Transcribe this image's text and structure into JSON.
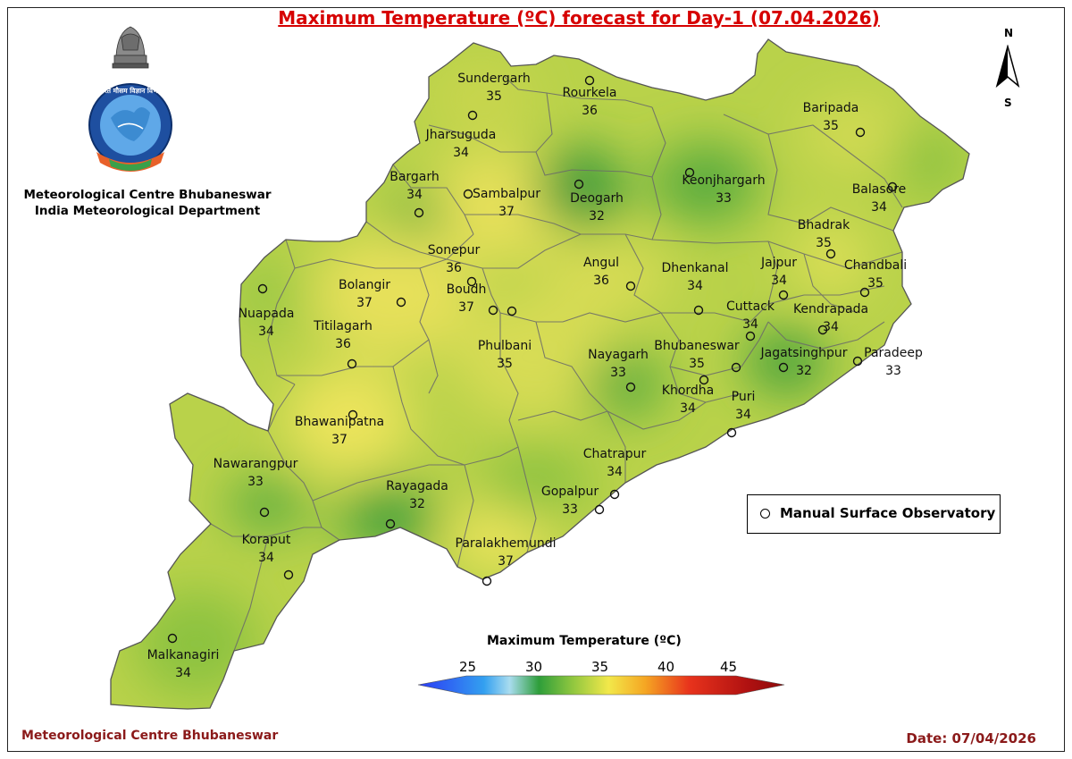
{
  "title": "Maximum Temperature (ºC) forecast for Day-1 (07.04.2026)",
  "organization": {
    "line1": "Meteorological Centre Bhubaneswar",
    "line2": "India Meteorological Department"
  },
  "logo": {
    "emblem_icon": "national-emblem-icon",
    "imd_seal_icon": "imd-seal-icon",
    "seal_text": "भारत मौसम विज्ञान विभाग",
    "seal_ring_text": "INDIA METEOROLOGICAL DEPARTMENT",
    "motto": "आदित्यात् जायते वृष्टिः"
  },
  "compass": {
    "north": "N",
    "south": "S",
    "icon": "north-arrow-icon"
  },
  "stations": [
    {
      "name": "Sundergarh",
      "value": "35"
    },
    {
      "name": "Rourkela",
      "value": "36"
    },
    {
      "name": "Baripada",
      "value": "35"
    },
    {
      "name": "Jharsuguda",
      "value": "34"
    },
    {
      "name": "Bargarh",
      "value": "34"
    },
    {
      "name": "Sambalpur",
      "value": "37"
    },
    {
      "name": "Deogarh",
      "value": "32"
    },
    {
      "name": "Keonjhargarh",
      "value": "33"
    },
    {
      "name": "Balasore",
      "value": "34"
    },
    {
      "name": "Bhadrak",
      "value": "35"
    },
    {
      "name": "Sonepur",
      "value": "36"
    },
    {
      "name": "Angul",
      "value": "36"
    },
    {
      "name": "Dhenkanal",
      "value": "34"
    },
    {
      "name": "Jajpur",
      "value": "34"
    },
    {
      "name": "Chandbali",
      "value": "35"
    },
    {
      "name": "Bolangir",
      "value": "37"
    },
    {
      "name": "Boudh",
      "value": "37"
    },
    {
      "name": "Nuapada",
      "value": "34"
    },
    {
      "name": "Titilagarh",
      "value": "36"
    },
    {
      "name": "Cuttack",
      "value": "34"
    },
    {
      "name": "Kendrapada",
      "value": "34"
    },
    {
      "name": "Phulbani",
      "value": "35"
    },
    {
      "name": "Nayagarh",
      "value": "33"
    },
    {
      "name": "Bhubaneswar",
      "value": "35"
    },
    {
      "name": "Jagatsinghpur",
      "value": "32"
    },
    {
      "name": "Paradeep",
      "value": "33"
    },
    {
      "name": "Khordha",
      "value": "34"
    },
    {
      "name": "Puri",
      "value": "34"
    },
    {
      "name": "Bhawanipatna",
      "value": "37"
    },
    {
      "name": "Chatrapur",
      "value": "34"
    },
    {
      "name": "Nawarangpur",
      "value": "33"
    },
    {
      "name": "Rayagada",
      "value": "32"
    },
    {
      "name": "Gopalpur",
      "value": "33"
    },
    {
      "name": "Koraput",
      "value": "34"
    },
    {
      "name": "Paralakhemundi",
      "value": "37"
    },
    {
      "name": "Malkanagiri",
      "value": "34"
    }
  ],
  "legend": {
    "label": "Manual Surface Observatory"
  },
  "colorbar": {
    "title": "Maximum Temperature (ºC)",
    "ticks": [
      "25",
      "30",
      "35",
      "40",
      "45"
    ],
    "colors": [
      "#2b3cf5",
      "#33a0f0",
      "#a9dcef",
      "#2e9e3a",
      "#8ec63f",
      "#f2e84a",
      "#f5a623",
      "#e8331c",
      "#8b0a0a"
    ]
  },
  "footer": {
    "left": "Meteorological Centre Bhubaneswar",
    "right": "Date: 07/04/2026"
  }
}
